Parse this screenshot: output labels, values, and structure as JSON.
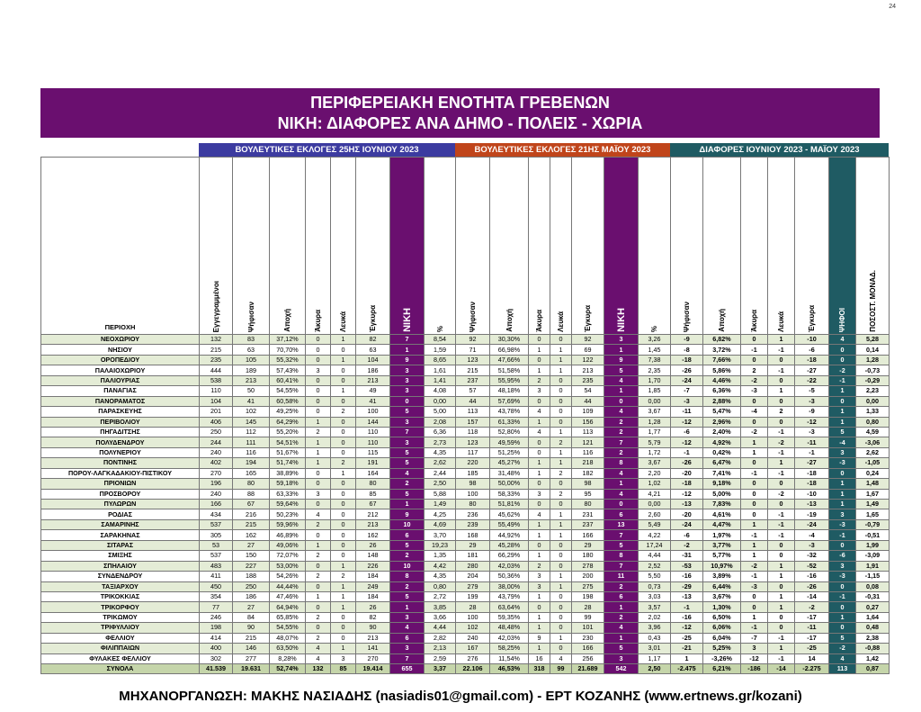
{
  "page_number": "24",
  "banner": {
    "title": "ΠΕΡΙΦΕΡΕΙΑΚΗ ΕΝΟΤΗΤΑ ΓΡΕΒΕΝΩΝ",
    "subtitle": "ΝΙΚΗ: ΔΙΑΦΟΡΕΣ ΑΝΑ ΔΗΜΟ - ΠΟΛΕΙΣ - ΧΩΡΙΑ"
  },
  "groups": {
    "june": "ΒΟΥΛΕΥΤΙΚΕΣ ΕΚΛΟΓΕΣ 25ΗΣ ΙΟΥΝΙΟΥ 2023",
    "may": "ΒΟΥΛΕΥΤΙΚΕΣ ΕΚΛΟΓΕΣ 21ΗΣ ΜΑΪΟΥ 2023",
    "diff": "ΔΙΑΦΟΡΕΣ ΙΟΥΝΙΟΥ 2023 - ΜΑΪΟΥ 2023"
  },
  "colors": {
    "purple": "#6a0f6f",
    "june_header": "#3c3ba0",
    "may_header": "#c0451b",
    "diff_header": "#1f5b63",
    "row_shade": "#e4ecd6"
  },
  "headers": [
    "ΠΕΡΙΟΧΗ",
    "Εγγεγραμμένοι",
    "Ψήφισαν",
    "Αποχή",
    "Άκυρα",
    "Λευκά",
    "Έγκυρα",
    "ΝΙΚΗ",
    "%",
    "Ψήφισαν",
    "Αποχή",
    "Άκυρα",
    "Λευκά",
    "Έγκυρα",
    "ΝΙΚΗ",
    "%",
    "Ψήφισαν",
    "Αποχή",
    "Άκυρα",
    "Λευκά",
    "Έγκυρα",
    "ΨΗΦΟΙ",
    "ΠΟΣΟΣΤ. ΜΟΝΑΔ."
  ],
  "rows": [
    [
      "ΝΕΟΧΩΡΙΟΥ",
      "132",
      "83",
      "37,12%",
      "0",
      "1",
      "82",
      "7",
      "8,54",
      "92",
      "30,30%",
      "0",
      "0",
      "92",
      "3",
      "3,26",
      "-9",
      "6,82%",
      "0",
      "1",
      "-10",
      "4",
      "5,28"
    ],
    [
      "ΝΗΣΙΟΥ",
      "215",
      "63",
      "70,70%",
      "0",
      "0",
      "63",
      "1",
      "1,59",
      "71",
      "66,98%",
      "1",
      "1",
      "69",
      "1",
      "1,45",
      "-8",
      "3,72%",
      "-1",
      "-1",
      "-6",
      "0",
      "0,14"
    ],
    [
      "ΟΡΟΠΕΔΙΟΥ",
      "235",
      "105",
      "55,32%",
      "0",
      "1",
      "104",
      "9",
      "8,65",
      "123",
      "47,66%",
      "0",
      "1",
      "122",
      "9",
      "7,38",
      "-18",
      "7,66%",
      "0",
      "0",
      "-18",
      "0",
      "1,28"
    ],
    [
      "ΠΑΛΑΙΟΧΩΡΙΟΥ",
      "444",
      "189",
      "57,43%",
      "3",
      "0",
      "186",
      "3",
      "1,61",
      "215",
      "51,58%",
      "1",
      "1",
      "213",
      "5",
      "2,35",
      "-26",
      "5,86%",
      "2",
      "-1",
      "-27",
      "-2",
      "-0,73"
    ],
    [
      "ΠΑΛΙΟΥΡΙΑΣ",
      "538",
      "213",
      "60,41%",
      "0",
      "0",
      "213",
      "3",
      "1,41",
      "237",
      "55,95%",
      "2",
      "0",
      "235",
      "4",
      "1,70",
      "-24",
      "4,46%",
      "-2",
      "0",
      "-22",
      "-1",
      "-0,29"
    ],
    [
      "ΠΑΝΑΓΙΑΣ",
      "110",
      "50",
      "54,55%",
      "0",
      "1",
      "49",
      "3",
      "4,08",
      "57",
      "48,18%",
      "3",
      "0",
      "54",
      "1",
      "1,85",
      "-7",
      "6,36%",
      "-3",
      "1",
      "-5",
      "1",
      "2,23"
    ],
    [
      "ΠΑΝΟΡΑΜΑΤΟΣ",
      "104",
      "41",
      "60,58%",
      "0",
      "0",
      "41",
      "0",
      "0,00",
      "44",
      "57,69%",
      "0",
      "0",
      "44",
      "0",
      "0,00",
      "-3",
      "2,88%",
      "0",
      "0",
      "-3",
      "0",
      "0,00"
    ],
    [
      "ΠΑΡΑΣΚΕΥΗΣ",
      "201",
      "102",
      "49,25%",
      "0",
      "2",
      "100",
      "5",
      "5,00",
      "113",
      "43,78%",
      "4",
      "0",
      "109",
      "4",
      "3,67",
      "-11",
      "5,47%",
      "-4",
      "2",
      "-9",
      "1",
      "1,33"
    ],
    [
      "ΠΕΡΙΒΟΛΙΟΥ",
      "406",
      "145",
      "64,29%",
      "1",
      "0",
      "144",
      "3",
      "2,08",
      "157",
      "61,33%",
      "1",
      "0",
      "156",
      "2",
      "1,28",
      "-12",
      "2,96%",
      "0",
      "0",
      "-12",
      "1",
      "0,80"
    ],
    [
      "ΠΗΓΑΔΙΤΣΗΣ",
      "250",
      "112",
      "55,20%",
      "2",
      "0",
      "110",
      "7",
      "6,36",
      "118",
      "52,80%",
      "4",
      "1",
      "113",
      "2",
      "1,77",
      "-6",
      "2,40%",
      "-2",
      "-1",
      "-3",
      "5",
      "4,59"
    ],
    [
      "ΠΟΛΥΔΕΝΔΡΟΥ",
      "244",
      "111",
      "54,51%",
      "1",
      "0",
      "110",
      "3",
      "2,73",
      "123",
      "49,59%",
      "0",
      "2",
      "121",
      "7",
      "5,79",
      "-12",
      "4,92%",
      "1",
      "-2",
      "-11",
      "-4",
      "-3,06"
    ],
    [
      "ΠΟΛΥΝΕΡΙΟΥ",
      "240",
      "116",
      "51,67%",
      "1",
      "0",
      "115",
      "5",
      "4,35",
      "117",
      "51,25%",
      "0",
      "1",
      "116",
      "2",
      "1,72",
      "-1",
      "0,42%",
      "1",
      "-1",
      "-1",
      "3",
      "2,62"
    ],
    [
      "ΠΟΝΤΙΝΗΣ",
      "402",
      "194",
      "51,74%",
      "1",
      "2",
      "191",
      "5",
      "2,62",
      "220",
      "45,27%",
      "1",
      "1",
      "218",
      "8",
      "3,67",
      "-26",
      "6,47%",
      "0",
      "1",
      "-27",
      "-3",
      "-1,05"
    ],
    [
      "ΠΟΡΟΥ-ΛΑΓΚΑΔΑΚΙΟΥ-ΠΙΣΤΙΚΟΥ",
      "270",
      "165",
      "38,89%",
      "0",
      "1",
      "164",
      "4",
      "2,44",
      "185",
      "31,48%",
      "1",
      "2",
      "182",
      "4",
      "2,20",
      "-20",
      "7,41%",
      "-1",
      "-1",
      "-18",
      "0",
      "0,24"
    ],
    [
      "ΠΡΙΟΝΙΩΝ",
      "196",
      "80",
      "59,18%",
      "0",
      "0",
      "80",
      "2",
      "2,50",
      "98",
      "50,00%",
      "0",
      "0",
      "98",
      "1",
      "1,02",
      "-18",
      "9,18%",
      "0",
      "0",
      "-18",
      "1",
      "1,48"
    ],
    [
      "ΠΡΟΣΒΟΡΟΥ",
      "240",
      "88",
      "63,33%",
      "3",
      "0",
      "85",
      "5",
      "5,88",
      "100",
      "58,33%",
      "3",
      "2",
      "95",
      "4",
      "4,21",
      "-12",
      "5,00%",
      "0",
      "-2",
      "-10",
      "1",
      "1,67"
    ],
    [
      "ΠΥΛΩΡΩΝ",
      "166",
      "67",
      "59,64%",
      "0",
      "0",
      "67",
      "1",
      "1,49",
      "80",
      "51,81%",
      "0",
      "0",
      "80",
      "0",
      "0,00",
      "-13",
      "7,83%",
      "0",
      "0",
      "-13",
      "1",
      "1,49"
    ],
    [
      "ΡΟΔΙΑΣ",
      "434",
      "216",
      "50,23%",
      "4",
      "0",
      "212",
      "9",
      "4,25",
      "236",
      "45,62%",
      "4",
      "1",
      "231",
      "6",
      "2,60",
      "-20",
      "4,61%",
      "0",
      "-1",
      "-19",
      "3",
      "1,65"
    ],
    [
      "ΣΑΜΑΡΙΝΗΣ",
      "537",
      "215",
      "59,96%",
      "2",
      "0",
      "213",
      "10",
      "4,69",
      "239",
      "55,49%",
      "1",
      "1",
      "237",
      "13",
      "5,49",
      "-24",
      "4,47%",
      "1",
      "-1",
      "-24",
      "-3",
      "-0,79"
    ],
    [
      "ΣΑΡΑΚΗΝΑΣ",
      "305",
      "162",
      "46,89%",
      "0",
      "0",
      "162",
      "6",
      "3,70",
      "168",
      "44,92%",
      "1",
      "1",
      "166",
      "7",
      "4,22",
      "-6",
      "1,97%",
      "-1",
      "-1",
      "-4",
      "-1",
      "-0,51"
    ],
    [
      "ΣΙΤΑΡΑΣ",
      "53",
      "27",
      "49,06%",
      "1",
      "0",
      "26",
      "5",
      "19,23",
      "29",
      "45,28%",
      "0",
      "0",
      "29",
      "5",
      "17,24",
      "-2",
      "3,77%",
      "1",
      "0",
      "-3",
      "0",
      "1,99"
    ],
    [
      "ΣΜΙΞΗΣ",
      "537",
      "150",
      "72,07%",
      "2",
      "0",
      "148",
      "2",
      "1,35",
      "181",
      "66,29%",
      "1",
      "0",
      "180",
      "8",
      "4,44",
      "-31",
      "5,77%",
      "1",
      "0",
      "-32",
      "-6",
      "-3,09"
    ],
    [
      "ΣΠΗΛΑΙΟΥ",
      "483",
      "227",
      "53,00%",
      "0",
      "1",
      "226",
      "10",
      "4,42",
      "280",
      "42,03%",
      "2",
      "0",
      "278",
      "7",
      "2,52",
      "-53",
      "10,97%",
      "-2",
      "1",
      "-52",
      "3",
      "1,91"
    ],
    [
      "ΣΥΝΔΕΝΔΡΟΥ",
      "411",
      "188",
      "54,26%",
      "2",
      "2",
      "184",
      "8",
      "4,35",
      "204",
      "50,36%",
      "3",
      "1",
      "200",
      "11",
      "5,50",
      "-16",
      "3,89%",
      "-1",
      "1",
      "-16",
      "-3",
      "-1,15"
    ],
    [
      "ΤΑΞΙΑΡΧΟΥ",
      "450",
      "250",
      "44,44%",
      "0",
      "1",
      "249",
      "2",
      "0,80",
      "279",
      "38,00%",
      "3",
      "1",
      "275",
      "2",
      "0,73",
      "-29",
      "6,44%",
      "-3",
      "0",
      "-26",
      "0",
      "0,08"
    ],
    [
      "ΤΡΙΚΟΚΚΙΑΣ",
      "354",
      "186",
      "47,46%",
      "1",
      "1",
      "184",
      "5",
      "2,72",
      "199",
      "43,79%",
      "1",
      "0",
      "198",
      "6",
      "3,03",
      "-13",
      "3,67%",
      "0",
      "1",
      "-14",
      "-1",
      "-0,31"
    ],
    [
      "ΤΡΙΚΟΡΦΟΥ",
      "77",
      "27",
      "64,94%",
      "0",
      "1",
      "26",
      "1",
      "3,85",
      "28",
      "63,64%",
      "0",
      "0",
      "28",
      "1",
      "3,57",
      "-1",
      "1,30%",
      "0",
      "1",
      "-2",
      "0",
      "0,27"
    ],
    [
      "ΤΡΙΚΩΜΟΥ",
      "246",
      "84",
      "65,85%",
      "2",
      "0",
      "82",
      "3",
      "3,66",
      "100",
      "59,35%",
      "1",
      "0",
      "99",
      "2",
      "2,02",
      "-16",
      "6,50%",
      "1",
      "0",
      "-17",
      "1",
      "1,64"
    ],
    [
      "ΤΡΙΦΥΛΛΙΟΥ",
      "198",
      "90",
      "54,55%",
      "0",
      "0",
      "90",
      "4",
      "4,44",
      "102",
      "48,48%",
      "1",
      "0",
      "101",
      "4",
      "3,96",
      "-12",
      "6,06%",
      "-1",
      "0",
      "-11",
      "0",
      "0,48"
    ],
    [
      "ΦΕΛΛΙΟΥ",
      "414",
      "215",
      "48,07%",
      "2",
      "0",
      "213",
      "6",
      "2,82",
      "240",
      "42,03%",
      "9",
      "1",
      "230",
      "1",
      "0,43",
      "-25",
      "6,04%",
      "-7",
      "-1",
      "-17",
      "5",
      "2,38"
    ],
    [
      "ΦΙΛΙΠΠΑΙΩΝ",
      "400",
      "146",
      "63,50%",
      "4",
      "1",
      "141",
      "3",
      "2,13",
      "167",
      "58,25%",
      "1",
      "0",
      "166",
      "5",
      "3,01",
      "-21",
      "5,25%",
      "3",
      "1",
      "-25",
      "-2",
      "-0,88"
    ],
    [
      "ΦΥΛΑΚΕΣ ΦΕΛΛΙΟΥ",
      "302",
      "277",
      "8,28%",
      "4",
      "3",
      "270",
      "7",
      "2,59",
      "276",
      "11,54%",
      "16",
      "4",
      "256",
      "3",
      "1,17",
      "1",
      "-3,26%",
      "-12",
      "-1",
      "14",
      "4",
      "1,42"
    ]
  ],
  "totals": [
    "ΣΥΝΟΛΑ",
    "41.539",
    "19.631",
    "52,74%",
    "132",
    "85",
    "19.414",
    "655",
    "3,37",
    "22.106",
    "46,53%",
    "318",
    "99",
    "21.689",
    "542",
    "2,50",
    "-2.475",
    "6,21%",
    "-186",
    "-14",
    "-2.275",
    "113",
    "0,87"
  ],
  "footer": "ΜΗΧΑΝΟΡΓΑΝΩΣΗ: ΜΑΚΗΣ ΝΑΣΙΑΔΗΣ (nasiadis01@gmail.com) - ΕΡΤ ΚΟΖΑΝΗΣ (www.ertnews.gr/kozani)"
}
